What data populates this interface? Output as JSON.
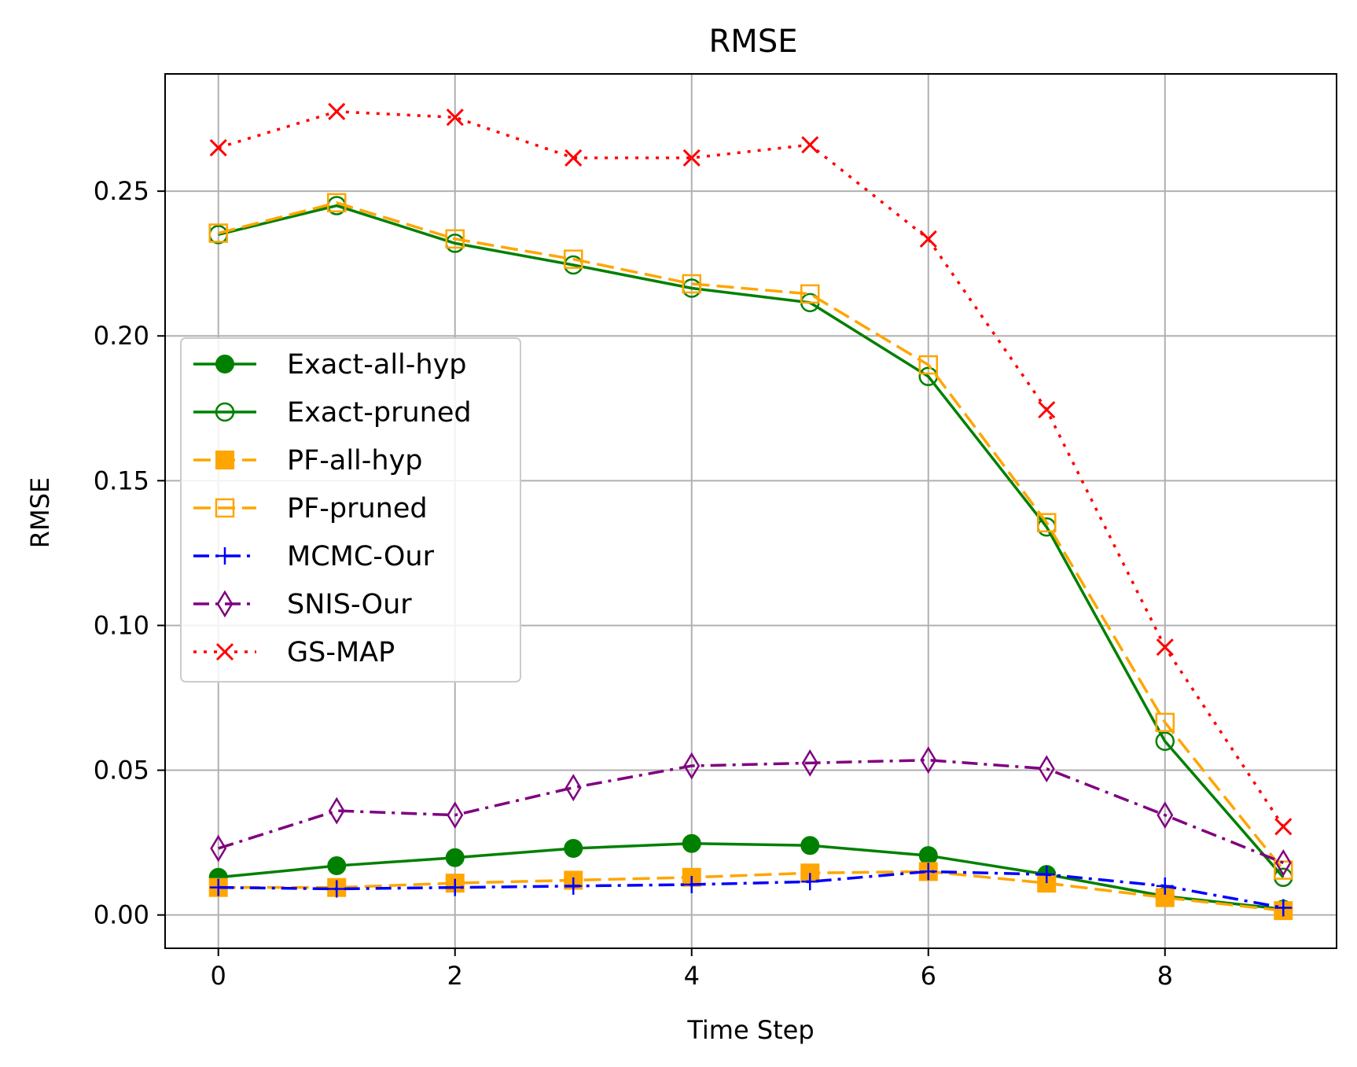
{
  "chart_data": {
    "type": "line",
    "title": "RMSE",
    "xlabel": "Time Step",
    "ylabel": "RMSE",
    "xlim": [
      -0.45,
      9.45
    ],
    "ylim": [
      -0.0115,
      0.2905
    ],
    "xticks": [
      0,
      2,
      4,
      6,
      8
    ],
    "xtick_labels": [
      "0",
      "2",
      "4",
      "6",
      "8"
    ],
    "yticks": [
      0.0,
      0.05,
      0.1,
      0.15,
      0.2,
      0.25
    ],
    "ytick_labels": [
      "0.00",
      "0.05",
      "0.10",
      "0.15",
      "0.20",
      "0.25"
    ],
    "grid": true,
    "legend_position": "center-left",
    "x": [
      0,
      1,
      2,
      3,
      4,
      5,
      6,
      7,
      8,
      9
    ],
    "series": [
      {
        "name": "Exact-all-hyp",
        "color": "#008000",
        "dash": "solid",
        "marker": "circle-filled",
        "values": [
          0.013,
          0.017,
          0.0198,
          0.023,
          0.0247,
          0.024,
          0.0205,
          0.014,
          0.0065,
          0.002
        ]
      },
      {
        "name": "Exact-pruned",
        "color": "#008000",
        "dash": "solid",
        "marker": "circle-open",
        "values": [
          0.235,
          0.245,
          0.232,
          0.2245,
          0.2165,
          0.2115,
          0.186,
          0.134,
          0.06,
          0.013
        ]
      },
      {
        "name": "PF-all-hyp",
        "color": "#ffa500",
        "dash": "dashed",
        "marker": "square-filled",
        "values": [
          0.0095,
          0.0095,
          0.011,
          0.012,
          0.013,
          0.0145,
          0.015,
          0.011,
          0.006,
          0.0015
        ]
      },
      {
        "name": "PF-pruned",
        "color": "#ffa500",
        "dash": "dashed",
        "marker": "square-open",
        "values": [
          0.2355,
          0.246,
          0.2335,
          0.2265,
          0.218,
          0.2145,
          0.19,
          0.1355,
          0.0665,
          0.0155
        ]
      },
      {
        "name": "MCMC-Our",
        "color": "#0000ff",
        "dash": "dashdot",
        "marker": "plus",
        "values": [
          0.0095,
          0.009,
          0.0095,
          0.01,
          0.0105,
          0.0115,
          0.015,
          0.014,
          0.01,
          0.0025
        ]
      },
      {
        "name": "SNIS-Our",
        "color": "#800080",
        "dash": "dashdot",
        "marker": "diamond-open",
        "values": [
          0.023,
          0.036,
          0.0345,
          0.044,
          0.0515,
          0.0525,
          0.0535,
          0.0505,
          0.0345,
          0.018
        ]
      },
      {
        "name": "GS-MAP",
        "color": "#ff0000",
        "dash": "dotted",
        "marker": "x",
        "values": [
          0.265,
          0.2775,
          0.2755,
          0.2615,
          0.2615,
          0.266,
          0.2335,
          0.1745,
          0.0925,
          0.0305
        ]
      }
    ]
  }
}
